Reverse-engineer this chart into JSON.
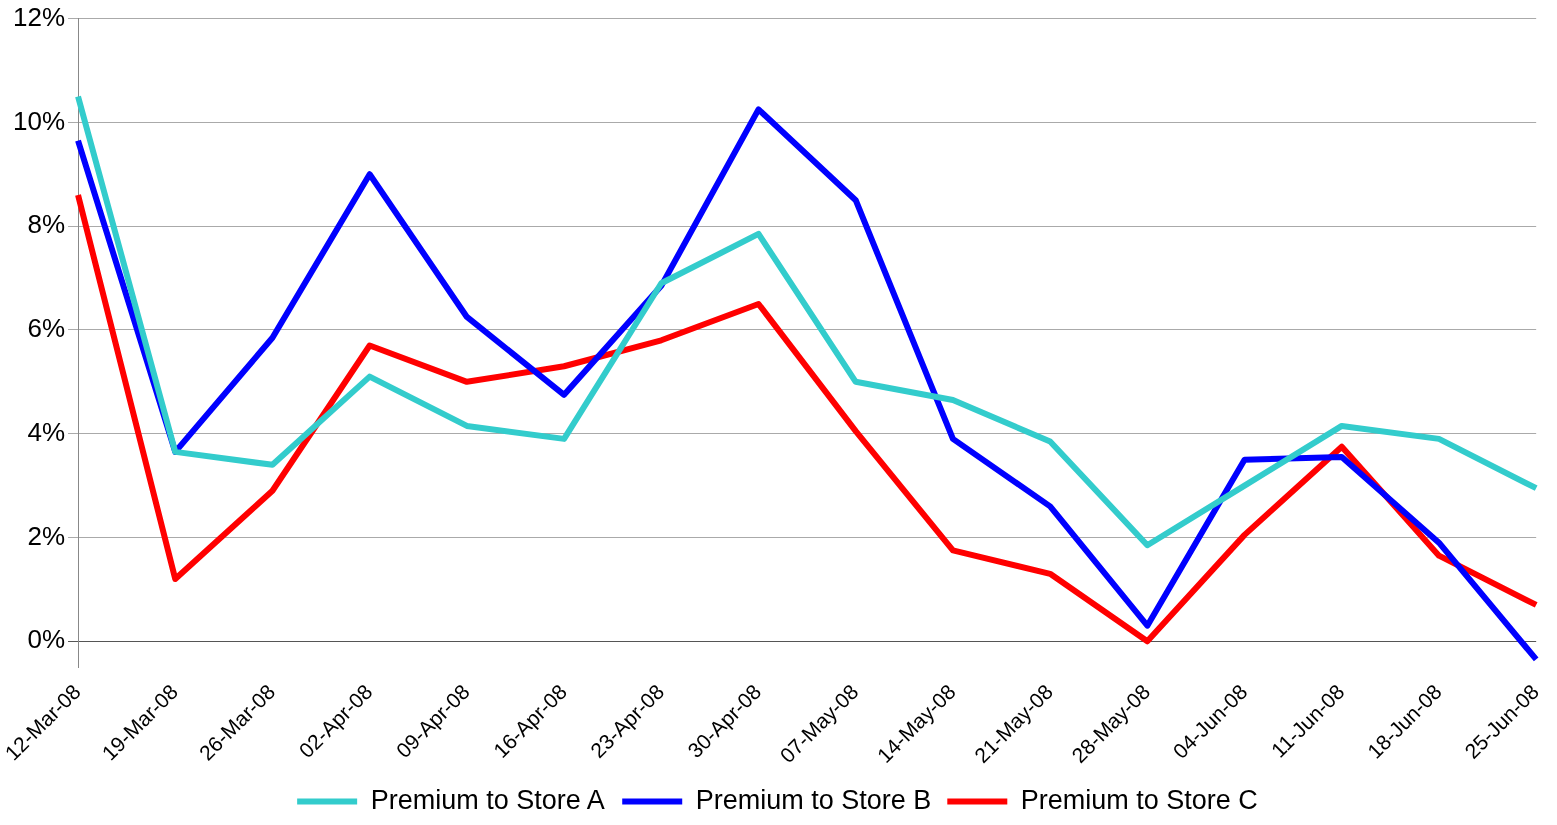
{
  "chart_data": {
    "type": "line",
    "categories": [
      "12-Mar-08",
      "19-Mar-08",
      "26-Mar-08",
      "02-Apr-08",
      "09-Apr-08",
      "16-Apr-08",
      "23-Apr-08",
      "30-Apr-08",
      "07-May-08",
      "14-May-08",
      "21-May-08",
      "28-May-08",
      "04-Jun-08",
      "11-Jun-08",
      "18-Jun-08",
      "25-Jun-08"
    ],
    "series": [
      {
        "name": "Premium to Store A",
        "color": "#33cccc",
        "values": [
          10.5,
          3.65,
          3.4,
          5.1,
          4.15,
          3.9,
          6.9,
          7.85,
          5.0,
          4.65,
          3.85,
          1.85,
          3.0,
          4.15,
          3.9,
          2.95
        ]
      },
      {
        "name": "Premium to Store B",
        "color": "#0000ff",
        "values": [
          9.65,
          3.65,
          5.85,
          9.0,
          6.25,
          4.75,
          6.85,
          10.25,
          8.5,
          3.9,
          2.6,
          0.3,
          3.5,
          3.55,
          1.9,
          -0.35
        ]
      },
      {
        "name": "Premium to Store C",
        "color": "#ff0000",
        "values": [
          8.6,
          1.2,
          2.9,
          5.7,
          5.0,
          5.3,
          5.8,
          6.5,
          4.05,
          1.75,
          1.3,
          0.0,
          2.05,
          3.75,
          1.65,
          0.7
        ]
      }
    ],
    "ylim": [
      -0.5,
      12
    ],
    "yticks": [
      {
        "value": 0,
        "label": "0%"
      },
      {
        "value": 2,
        "label": "2%"
      },
      {
        "value": 4,
        "label": "4%"
      },
      {
        "value": 6,
        "label": "6%"
      },
      {
        "value": 8,
        "label": "8%"
      },
      {
        "value": 10,
        "label": "10%"
      },
      {
        "value": 12,
        "label": "12%"
      }
    ],
    "grid": "y",
    "legend": "bottom",
    "marker": "none",
    "line_style": "solid"
  }
}
